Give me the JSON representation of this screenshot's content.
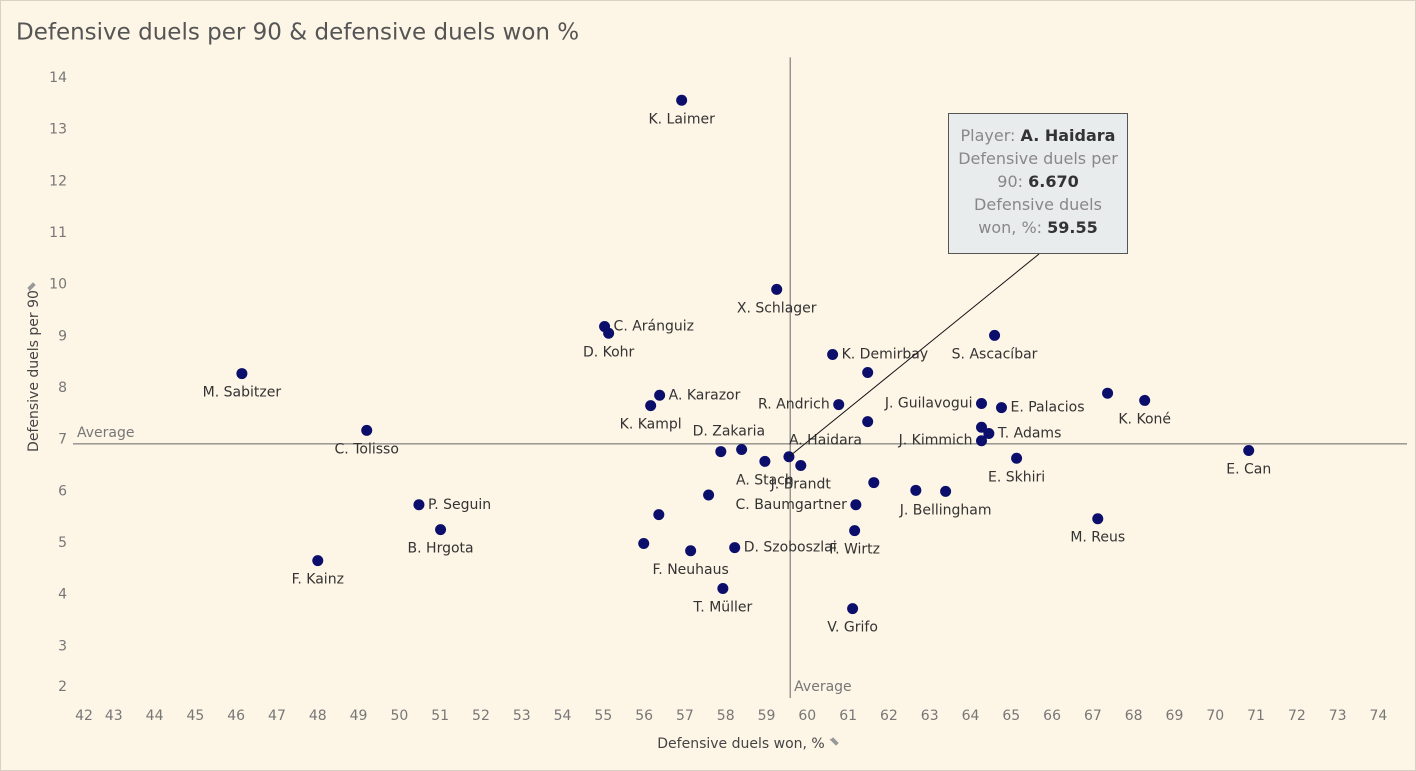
{
  "chart_data": {
    "type": "scatter",
    "title": "Defensive duels per 90 & defensive duels won %",
    "x_label": "Defensive duels won, %",
    "y_label": "Defensive duels per 90",
    "color": "#0b0f6b",
    "xlim": [
      42,
      74.7
    ],
    "ylim": [
      2,
      14.4
    ],
    "xticks": [
      42,
      43,
      44,
      45,
      46,
      47,
      48,
      49,
      50,
      51,
      52,
      53,
      54,
      55,
      56,
      57,
      58,
      59,
      60,
      61,
      62,
      63,
      64,
      65,
      66,
      67,
      68,
      69,
      70,
      71,
      72,
      73,
      74
    ],
    "yticks": [
      2,
      3,
      4,
      5,
      6,
      7,
      8,
      9,
      10,
      11,
      12,
      13,
      14
    ],
    "average_x": 59.58,
    "average_y": 6.92,
    "average_label": "Average",
    "labels": [
      "K. Laimer",
      "X. Schlager",
      "C. Aránguiz",
      "D. Kohr",
      "K. Demirbay",
      "S. Ascacíbar",
      null,
      "M. Sabitzer",
      "A. Karazor",
      "K. Kampl",
      "R. Andrich",
      "J. Guilavogui",
      "E. Palacios",
      null,
      "K. Koné",
      null,
      "C. Tolisso",
      null,
      "T. Adams",
      "J. Kimmich",
      "D. Zakaria",
      null,
      "E. Can",
      "A. Haidara",
      "A. Stach",
      "J. Brandt",
      "E. Skhiri",
      null,
      null,
      null,
      "J. Bellingham",
      "C. Baumgartner",
      "P. Seguin",
      "M. Reus",
      null,
      "B. Hrgota",
      "F. Wirtz",
      null,
      "F. Neuhaus",
      "D. Szoboszlai",
      "F. Kainz",
      "T. Müller",
      "V. Grifo"
    ],
    "x": [
      56.92,
      59.25,
      55.03,
      55.13,
      60.62,
      64.59,
      61.48,
      46.14,
      56.38,
      56.16,
      60.77,
      64.27,
      64.76,
      67.36,
      68.27,
      61.48,
      49.2,
      64.27,
      64.45,
      64.27,
      57.88,
      58.39,
      70.82,
      59.55,
      58.96,
      59.84,
      65.13,
      57.58,
      61.63,
      62.66,
      63.39,
      61.19,
      50.48,
      67.12,
      56.36,
      51.01,
      61.16,
      55.99,
      57.14,
      58.22,
      48.0,
      57.93,
      61.11
    ],
    "values": [
      13.57,
      9.91,
      9.19,
      9.06,
      8.65,
      9.02,
      8.3,
      8.28,
      7.86,
      7.66,
      7.68,
      7.7,
      7.62,
      7.9,
      7.76,
      7.35,
      7.18,
      7.24,
      7.12,
      6.98,
      6.77,
      6.81,
      6.79,
      6.67,
      6.58,
      6.5,
      6.64,
      5.93,
      6.17,
      6.02,
      6.0,
      5.74,
      5.74,
      5.47,
      5.55,
      5.26,
      5.24,
      4.99,
      4.85,
      4.91,
      4.66,
      4.12,
      3.73
    ],
    "tooltip": {
      "player_label": "Player:",
      "player": "A. Haidara",
      "y_label": "Defensive duels per 90:",
      "y_value": "6.670",
      "x_label": "Defensive duels won, %:",
      "x_value": "59.55"
    }
  }
}
